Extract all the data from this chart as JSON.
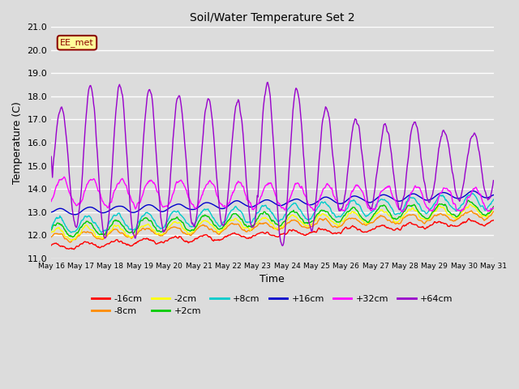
{
  "title": "Soil/Water Temperature Set 2",
  "xlabel": "Time",
  "ylabel": "Temperature (C)",
  "ylim": [
    11.0,
    21.0
  ],
  "yticks": [
    11.0,
    12.0,
    13.0,
    14.0,
    15.0,
    16.0,
    17.0,
    18.0,
    19.0,
    20.0,
    21.0
  ],
  "xtick_labels": [
    "May 16",
    "May 17",
    "May 18",
    "May 19",
    "May 20",
    "May 21",
    "May 22",
    "May 23",
    "May 24",
    "May 25",
    "May 26",
    "May 27",
    "May 28",
    "May 29",
    "May 30",
    "May 31"
  ],
  "annotation_text": "EE_met",
  "annotation_color": "#8B0000",
  "annotation_bg": "#FFFF99",
  "bg_color": "#DCDCDC",
  "plot_bg_color": "#DCDCDC",
  "grid_color": "#FFFFFF",
  "legend_entries": [
    "-16cm",
    "-8cm",
    "-2cm",
    "+2cm",
    "+8cm",
    "+16cm",
    "+32cm",
    "+64cm"
  ],
  "line_colors": [
    "#FF0000",
    "#FF8C00",
    "#FFFF00",
    "#00CC00",
    "#00CCCC",
    "#0000CC",
    "#FF00FF",
    "#9900CC"
  ],
  "n_days": 15,
  "n_points_per_day": 48
}
